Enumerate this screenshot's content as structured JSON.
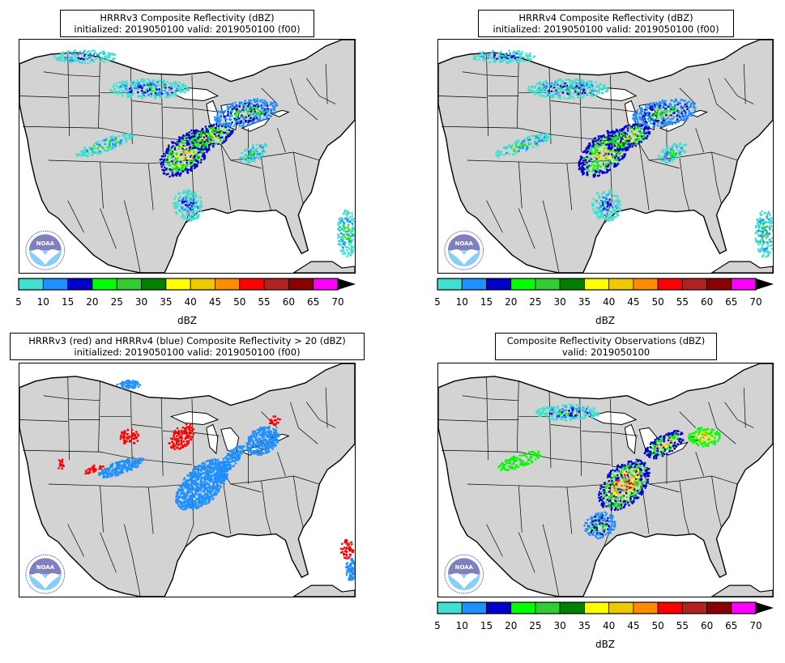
{
  "panels": [
    {
      "title_line1": "HRRRv3 Composite Reflectivity (dBZ)",
      "title_line2": "initialized: 2019050100 valid: 2019050100 (f00)"
    },
    {
      "title_line1": "HRRRv4 Composite Reflectivity (dBZ)",
      "title_line2": "initialized: 2019050100 valid: 2019050100 (f00)"
    },
    {
      "title_line1": "HRRRv3 (red) and HRRRv4 (blue) Composite Reflectivity > 20 (dBZ)",
      "title_line2": "initialized: 2019050100 valid: 2019050100 (f00)"
    },
    {
      "title_line1": "Composite Reflectivity Observations (dBZ)",
      "title_line2": "valid: 2019050100"
    }
  ],
  "logo_text": "NOAA",
  "colorbar": {
    "label": "dBZ",
    "ticks": [
      "5",
      "10",
      "15",
      "20",
      "25",
      "30",
      "35",
      "40",
      "45",
      "50",
      "55",
      "60",
      "65",
      "70"
    ],
    "colors": [
      "#40e0d0",
      "#1e90ff",
      "#0000cd",
      "#00ff00",
      "#32cd32",
      "#008000",
      "#ffff00",
      "#eec900",
      "#ff8c00",
      "#ff0000",
      "#b22222",
      "#8b0000",
      "#ff00ff"
    ],
    "extend_color": "#000000"
  },
  "colors": {
    "land": "#d3d3d3",
    "water": "#ffffff",
    "hrrrv3_overlay": "#ff0000",
    "hrrrv4_overlay": "#1e90ff"
  }
}
